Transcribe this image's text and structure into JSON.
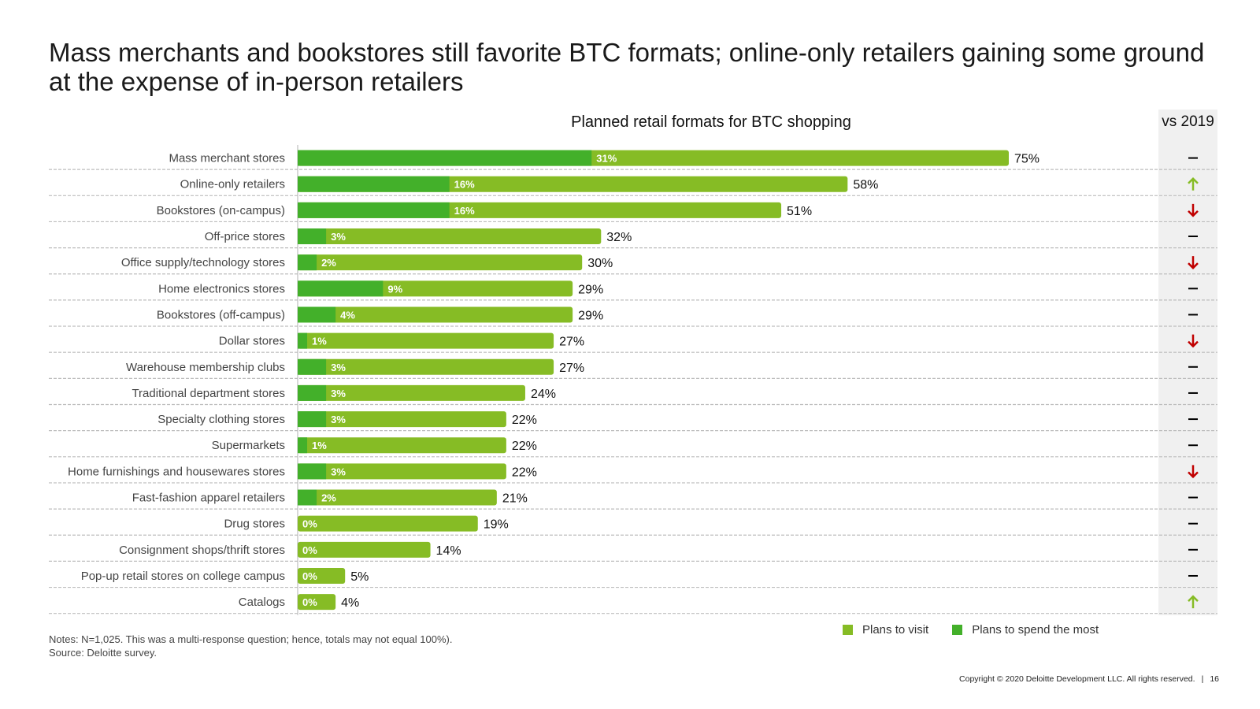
{
  "page": {
    "title": "Mass merchants and bookstores still favorite BTC formats; online-only retailers gaining some ground at the expense of in-person retailers",
    "notes": "Notes: N=1,025. This was a multi-response question; hence, totals may not equal 100%).",
    "source": "Source: Deloitte survey.",
    "copyright": "Copyright © 2020 Deloitte Development LLC. All rights reserved.",
    "page_number": "16"
  },
  "colors": {
    "visit": "#86bc25",
    "spend": "#43b02a",
    "up": "#86bc25",
    "down": "#c00000",
    "flat": "#000000",
    "divider": "#bdbdbd"
  },
  "chart_data": {
    "type": "bar",
    "orientation": "horizontal",
    "title": "Planned retail formats for BTC shopping",
    "trend_header": "vs 2019",
    "xlim": [
      0,
      100
    ],
    "categories": [
      "Mass merchant stores",
      "Online-only retailers",
      "Bookstores (on-campus)",
      "Off-price stores",
      "Office supply/technology stores",
      "Home electronics stores",
      "Bookstores (off-campus)",
      "Dollar stores",
      "Warehouse membership clubs",
      "Traditional department stores",
      "Specialty clothing stores",
      "Supermarkets",
      "Home furnishings and housewares stores",
      "Fast-fashion apparel retailers",
      "Drug stores",
      "Consignment shops/thrift stores",
      "Pop-up retail stores on college campus",
      "Catalogs"
    ],
    "series": [
      {
        "name": "Plans to visit",
        "values": [
          75,
          58,
          51,
          32,
          30,
          29,
          29,
          27,
          27,
          24,
          22,
          22,
          22,
          21,
          19,
          14,
          5,
          4
        ],
        "labels": [
          "75%",
          "58%",
          "51%",
          "32%",
          "30%",
          "29%",
          "29%",
          "27%",
          "27%",
          "24%",
          "22%",
          "22%",
          "22%",
          "21%",
          "19%",
          "14%",
          "5%",
          "4%"
        ]
      },
      {
        "name": "Plans to spend the most",
        "values": [
          31,
          16,
          16,
          3,
          2,
          9,
          4,
          1,
          3,
          3,
          3,
          1,
          3,
          2,
          0,
          0,
          0,
          0
        ],
        "labels": [
          "31%",
          "16%",
          "16%",
          "3%",
          "2%",
          "9%",
          "4%",
          "1%",
          "3%",
          "3%",
          "3%",
          "1%",
          "3%",
          "2%",
          "0%",
          "0%",
          "0%",
          "0%"
        ]
      }
    ],
    "trend_vs_2019": [
      "flat",
      "up",
      "down",
      "flat",
      "down",
      "flat",
      "flat",
      "down",
      "flat",
      "flat",
      "flat",
      "flat",
      "down",
      "flat",
      "flat",
      "flat",
      "flat",
      "up"
    ],
    "legend": [
      "Plans to visit",
      "Plans to spend the most"
    ]
  }
}
